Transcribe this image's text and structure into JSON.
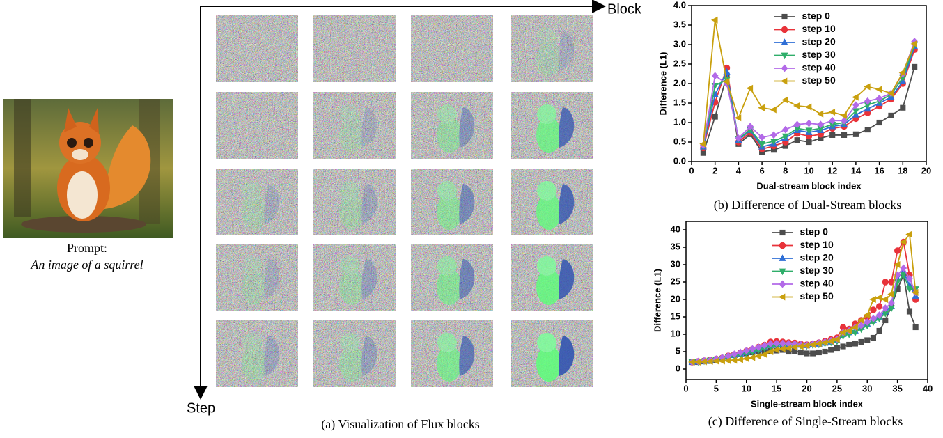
{
  "figure": {
    "prompt_label": "Prompt:",
    "prompt_text": "An image of a squirrel",
    "block_axis": "Block",
    "step_axis": "Step",
    "caption": "(a) Visualization of Flux blocks"
  },
  "chart_data": [
    {
      "type": "line",
      "caption": "(b) Difference of Dual-Stream blocks",
      "x_label": "Dual-stream block index",
      "y_label": "Difference (L1)",
      "x": [
        1,
        2,
        3,
        4,
        5,
        6,
        7,
        8,
        9,
        10,
        11,
        12,
        13,
        14,
        15,
        16,
        17,
        18,
        19
      ],
      "xlim": [
        0,
        20
      ],
      "xticks": [
        0,
        2,
        4,
        6,
        8,
        10,
        12,
        14,
        16,
        18,
        20
      ],
      "ylim": [
        0,
        4
      ],
      "yticks": [
        {
          "value": 0,
          "label": "0.0"
        },
        {
          "value": 0.5,
          "label": "0.5"
        },
        {
          "value": 1,
          "label": "1.0"
        },
        {
          "value": 1.5,
          "label": "1.5"
        },
        {
          "value": 2,
          "label": "2.0"
        },
        {
          "value": 2.5,
          "label": "2.5"
        },
        {
          "value": 3,
          "label": "3.0"
        },
        {
          "value": 3.5,
          "label": "3.5"
        },
        {
          "value": 4,
          "label": "4.0"
        }
      ],
      "legend": "upper center",
      "series": [
        {
          "name": "step 0",
          "color": "#4d4d4d",
          "marker": "square",
          "values": [
            0.22,
            1.15,
            2.2,
            0.45,
            0.7,
            0.25,
            0.3,
            0.4,
            0.55,
            0.5,
            0.6,
            0.68,
            0.68,
            0.7,
            0.82,
            1.0,
            1.18,
            1.38,
            2.43
          ]
        },
        {
          "name": "step 10",
          "color": "#e8333a",
          "marker": "circle",
          "values": [
            0.35,
            1.52,
            2.4,
            0.5,
            0.75,
            0.32,
            0.4,
            0.5,
            0.72,
            0.65,
            0.7,
            0.85,
            0.9,
            1.1,
            1.25,
            1.42,
            1.6,
            2.0,
            2.87
          ]
        },
        {
          "name": "step 20",
          "color": "#2f6fd6",
          "marker": "triangle-up",
          "values": [
            0.38,
            1.72,
            2.3,
            0.55,
            0.8,
            0.38,
            0.45,
            0.6,
            0.8,
            0.75,
            0.8,
            0.9,
            0.95,
            1.2,
            1.35,
            1.5,
            1.65,
            2.05,
            2.95
          ]
        },
        {
          "name": "step 30",
          "color": "#2fae6a",
          "marker": "triangle-down",
          "values": [
            0.4,
            1.95,
            2.1,
            0.58,
            0.82,
            0.45,
            0.52,
            0.65,
            0.85,
            0.8,
            0.85,
            0.95,
            1.0,
            1.3,
            1.45,
            1.55,
            1.72,
            2.15,
            3.0
          ]
        },
        {
          "name": "step 40",
          "color": "#b36ae8",
          "marker": "diamond",
          "values": [
            0.42,
            2.2,
            2.0,
            0.6,
            0.9,
            0.62,
            0.68,
            0.82,
            0.95,
            0.98,
            0.95,
            1.05,
            1.05,
            1.45,
            1.55,
            1.62,
            1.75,
            2.25,
            3.08
          ]
        },
        {
          "name": "step 50",
          "color": "#c9a00e",
          "marker": "triangle-left",
          "values": [
            0.45,
            3.63,
            2.05,
            1.12,
            1.88,
            1.38,
            1.33,
            1.58,
            1.43,
            1.4,
            1.22,
            1.27,
            1.18,
            1.65,
            1.92,
            1.85,
            1.75,
            2.28,
            3.02
          ]
        }
      ]
    },
    {
      "type": "line",
      "caption": "(c) Difference of Single-Stream blocks",
      "x_label": "Single-stream block index",
      "y_label": "Difference (L1)",
      "x": [
        1,
        2,
        3,
        4,
        5,
        6,
        7,
        8,
        9,
        10,
        11,
        12,
        13,
        14,
        15,
        16,
        17,
        18,
        19,
        20,
        21,
        22,
        23,
        24,
        25,
        26,
        27,
        28,
        29,
        30,
        31,
        32,
        33,
        34,
        35,
        36,
        37,
        38
      ],
      "xlim": [
        0,
        40
      ],
      "xticks": [
        0,
        5,
        10,
        15,
        20,
        25,
        30,
        35,
        40
      ],
      "ylim": [
        -3,
        42.4
      ],
      "yticks": [
        0,
        5,
        10,
        15,
        20,
        25,
        30,
        35,
        40
      ],
      "legend": "upper center",
      "series": [
        {
          "name": "step 0",
          "color": "#4d4d4d",
          "marker": "square",
          "values": [
            2,
            2,
            2.2,
            2.3,
            2.5,
            3,
            3.5,
            4,
            4.3,
            4.5,
            4.8,
            5,
            5.2,
            5.2,
            5.3,
            5.5,
            5,
            5.2,
            4.8,
            4.5,
            4.5,
            4.8,
            5,
            5.5,
            6,
            6.5,
            7,
            7.3,
            7.8,
            8.3,
            9,
            11,
            14,
            18,
            23,
            27,
            16.5,
            12
          ]
        },
        {
          "name": "step 10",
          "color": "#e8333a",
          "marker": "circle",
          "values": [
            2,
            2.2,
            2.4,
            2.6,
            2.9,
            3.2,
            3.8,
            4.2,
            4.7,
            5.2,
            5.7,
            6.3,
            6.9,
            7.8,
            7.9,
            7.8,
            7.6,
            7.5,
            7.2,
            7,
            7.3,
            7.6,
            8,
            8.5,
            9,
            12,
            11.5,
            13,
            14,
            15,
            17,
            18,
            25,
            25,
            34,
            36.5,
            27,
            20
          ]
        },
        {
          "name": "step 20",
          "color": "#2f6fd6",
          "marker": "triangle-up",
          "values": [
            2,
            2.1,
            2.3,
            2.5,
            2.8,
            3.1,
            3.5,
            4,
            4.4,
            4.8,
            5.3,
            5.8,
            6.3,
            6.8,
            7,
            7,
            7,
            7,
            6.9,
            6.8,
            7,
            7.2,
            7.5,
            7.8,
            8.2,
            10,
            10.5,
            11,
            12,
            13,
            14,
            15,
            16.5,
            18,
            26,
            28,
            24,
            21
          ]
        },
        {
          "name": "step 30",
          "color": "#2fae6a",
          "marker": "triangle-down",
          "values": [
            2,
            2.1,
            2.3,
            2.5,
            2.7,
            3,
            3.4,
            3.8,
            4.2,
            4.6,
            5,
            5.5,
            6,
            6.5,
            6.8,
            6.9,
            6.9,
            6.9,
            6.8,
            6.7,
            6.9,
            7.1,
            7.4,
            7.7,
            8,
            9.5,
            10,
            10.5,
            11.5,
            12.5,
            13.5,
            14.5,
            16,
            17.5,
            25,
            27,
            23,
            23
          ]
        },
        {
          "name": "step 40",
          "color": "#b36ae8",
          "marker": "diamond",
          "values": [
            2,
            2.2,
            2.4,
            2.6,
            2.9,
            3.3,
            3.8,
            4.3,
            4.8,
            5.3,
            5.8,
            6.3,
            6.8,
            7.3,
            7.4,
            7.4,
            7.3,
            7.2,
            7,
            6.9,
            7.2,
            7.5,
            7.8,
            8.2,
            8.6,
            10.5,
            11,
            12,
            12.5,
            13.5,
            14.5,
            15.5,
            17.5,
            19,
            27,
            29,
            26,
            22
          ]
        },
        {
          "name": "step 50",
          "color": "#c9a00e",
          "marker": "triangle-left",
          "values": [
            2,
            2,
            2.1,
            2.2,
            2.3,
            2.3,
            2.4,
            2.5,
            2.7,
            3,
            3.3,
            3.7,
            4.2,
            5,
            5.5,
            5.8,
            6,
            6.3,
            6.5,
            6.7,
            7,
            7.3,
            7.6,
            8,
            8.5,
            10.5,
            11,
            12,
            14,
            15.5,
            20,
            20.5,
            20,
            21.5,
            30,
            36.5,
            38.7,
            22
          ]
        }
      ]
    }
  ]
}
